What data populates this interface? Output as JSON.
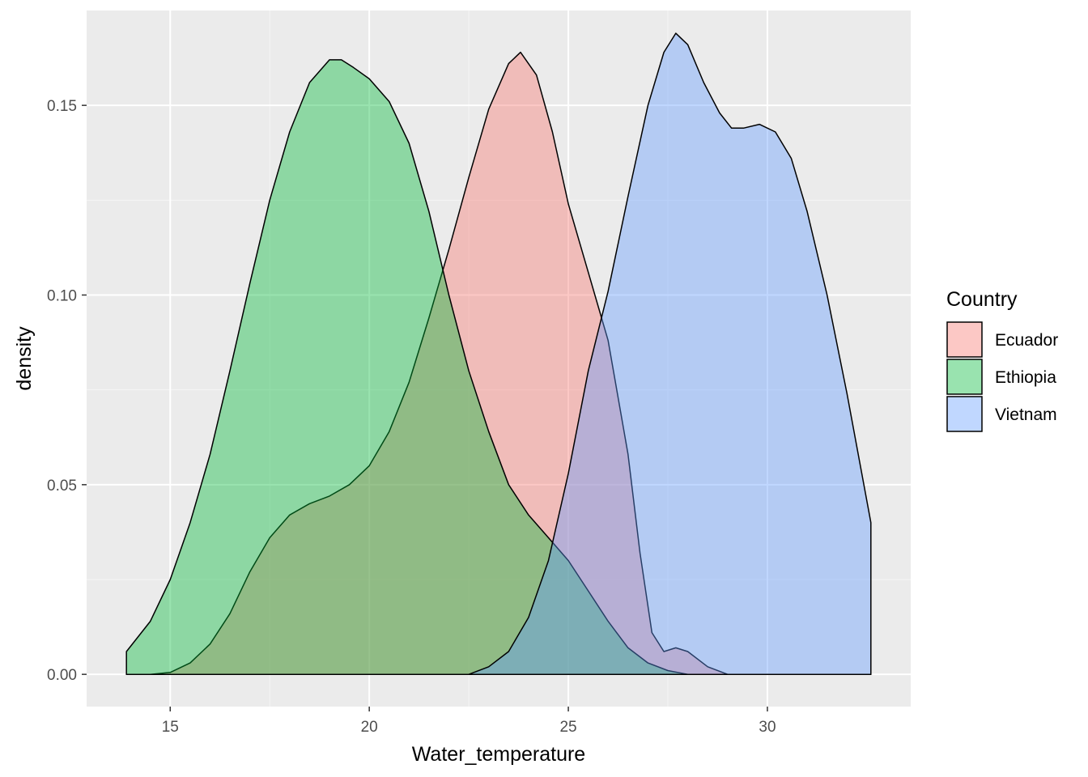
{
  "chart_data": {
    "type": "area",
    "subtype": "density",
    "title": "",
    "xlabel": "Water_temperature",
    "ylabel": "density",
    "xlim": [
      12.9,
      33.6
    ],
    "ylim": [
      -0.0085,
      0.175
    ],
    "x_ticks": [
      15,
      20,
      25,
      30
    ],
    "x_tick_labels": [
      "15",
      "20",
      "25",
      "30"
    ],
    "y_ticks": [
      0,
      0.05,
      0.1,
      0.15
    ],
    "y_tick_labels": [
      "0.00",
      "0.05",
      "0.10",
      "0.15"
    ],
    "grid": true,
    "legend": {
      "title": "Country",
      "position": "right"
    },
    "series": [
      {
        "name": "Ecuador",
        "color": "#F8766D",
        "points": [
          [
            13.9,
            0.0
          ],
          [
            14.5,
            0.0
          ],
          [
            15.0,
            0.0005
          ],
          [
            15.5,
            0.003
          ],
          [
            16.0,
            0.008
          ],
          [
            16.5,
            0.016
          ],
          [
            17.0,
            0.027
          ],
          [
            17.5,
            0.036
          ],
          [
            18.0,
            0.042
          ],
          [
            18.5,
            0.045
          ],
          [
            19.0,
            0.047
          ],
          [
            19.5,
            0.05
          ],
          [
            20.0,
            0.055
          ],
          [
            20.5,
            0.064
          ],
          [
            21.0,
            0.077
          ],
          [
            21.5,
            0.094
          ],
          [
            22.0,
            0.112
          ],
          [
            22.5,
            0.131
          ],
          [
            23.0,
            0.149
          ],
          [
            23.5,
            0.161
          ],
          [
            23.8,
            0.164
          ],
          [
            24.2,
            0.158
          ],
          [
            24.6,
            0.143
          ],
          [
            25.0,
            0.124
          ],
          [
            25.5,
            0.106
          ],
          [
            26.0,
            0.088
          ],
          [
            26.5,
            0.058
          ],
          [
            26.8,
            0.032
          ],
          [
            27.1,
            0.011
          ],
          [
            27.4,
            0.006
          ],
          [
            27.7,
            0.007
          ],
          [
            28.0,
            0.006
          ],
          [
            28.5,
            0.002
          ],
          [
            29.0,
            0.0
          ],
          [
            32.6,
            0.0
          ]
        ]
      },
      {
        "name": "Ethiopia",
        "color": "#00BA38",
        "points": [
          [
            13.9,
            0.006
          ],
          [
            14.5,
            0.014
          ],
          [
            15.0,
            0.025
          ],
          [
            15.5,
            0.04
          ],
          [
            16.0,
            0.058
          ],
          [
            16.5,
            0.08
          ],
          [
            17.0,
            0.103
          ],
          [
            17.5,
            0.125
          ],
          [
            18.0,
            0.143
          ],
          [
            18.5,
            0.156
          ],
          [
            19.0,
            0.162
          ],
          [
            19.3,
            0.162
          ],
          [
            19.6,
            0.16
          ],
          [
            20.0,
            0.157
          ],
          [
            20.5,
            0.151
          ],
          [
            21.0,
            0.14
          ],
          [
            21.5,
            0.122
          ],
          [
            22.0,
            0.1
          ],
          [
            22.5,
            0.08
          ],
          [
            23.0,
            0.064
          ],
          [
            23.5,
            0.05
          ],
          [
            24.0,
            0.042
          ],
          [
            24.5,
            0.036
          ],
          [
            25.0,
            0.03
          ],
          [
            25.5,
            0.022
          ],
          [
            26.0,
            0.014
          ],
          [
            26.5,
            0.007
          ],
          [
            27.0,
            0.003
          ],
          [
            27.5,
            0.001
          ],
          [
            28.0,
            0.0
          ],
          [
            32.6,
            0.0
          ]
        ]
      },
      {
        "name": "Vietnam",
        "color": "#619CFF",
        "points": [
          [
            13.9,
            0.0
          ],
          [
            22.0,
            0.0
          ],
          [
            22.5,
            0.0
          ],
          [
            23.0,
            0.002
          ],
          [
            23.5,
            0.006
          ],
          [
            24.0,
            0.015
          ],
          [
            24.5,
            0.03
          ],
          [
            25.0,
            0.053
          ],
          [
            25.5,
            0.08
          ],
          [
            26.0,
            0.101
          ],
          [
            26.5,
            0.126
          ],
          [
            27.0,
            0.15
          ],
          [
            27.4,
            0.164
          ],
          [
            27.7,
            0.169
          ],
          [
            28.0,
            0.166
          ],
          [
            28.4,
            0.156
          ],
          [
            28.8,
            0.148
          ],
          [
            29.1,
            0.144
          ],
          [
            29.4,
            0.144
          ],
          [
            29.8,
            0.145
          ],
          [
            30.2,
            0.143
          ],
          [
            30.6,
            0.136
          ],
          [
            31.0,
            0.122
          ],
          [
            31.5,
            0.1
          ],
          [
            32.0,
            0.074
          ],
          [
            32.6,
            0.04
          ]
        ]
      }
    ]
  }
}
